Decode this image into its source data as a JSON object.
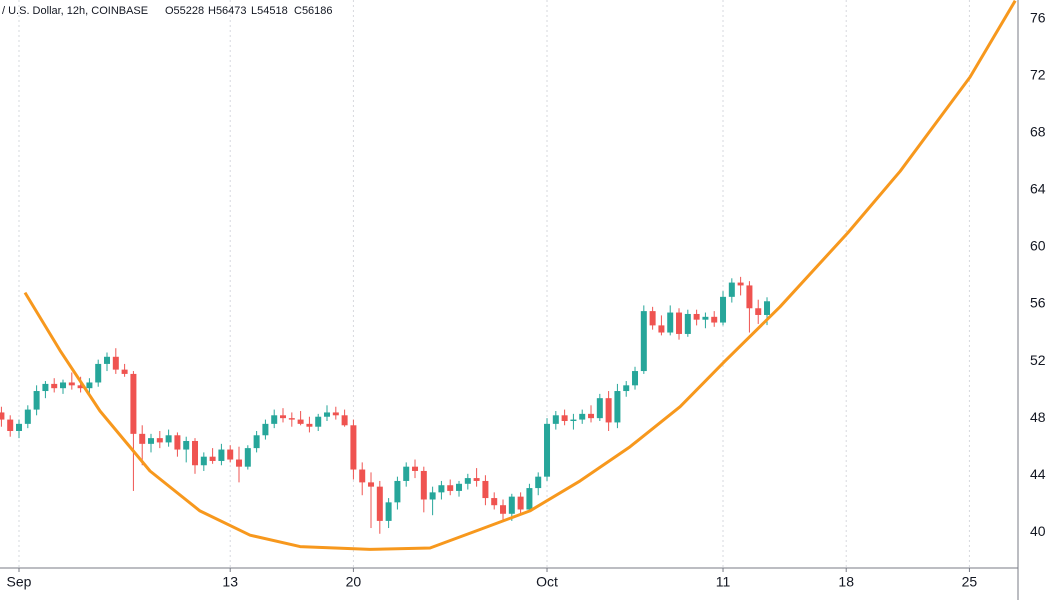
{
  "chart_data": {
    "type": "candlestick",
    "title": "/ U.S. Dollar, 12h, COINBASE",
    "ohlc_labels": [
      "O55228",
      "H56473",
      "L54518",
      "C56186"
    ],
    "up_color": "#26a69a",
    "down_color": "#ef5350",
    "grid": true,
    "xlim": [
      -1.08,
      56.76
    ],
    "ylim": [
      37.5,
      77.3
    ],
    "xticks": [
      {
        "value": 0,
        "label": "Sep"
      },
      {
        "value": 12,
        "label": "13"
      },
      {
        "value": 19,
        "label": "20"
      },
      {
        "value": 30,
        "label": "Oct"
      },
      {
        "value": 40,
        "label": "11"
      },
      {
        "value": 47,
        "label": "18"
      },
      {
        "value": 54,
        "label": "25"
      }
    ],
    "yticks": [
      40,
      44,
      48,
      52,
      56,
      60,
      64,
      68,
      72,
      76
    ],
    "x": [
      -1,
      -0.5,
      0,
      0.5,
      1,
      1.5,
      2,
      2.5,
      3,
      3.5,
      4,
      4.5,
      5,
      5.5,
      6,
      6.5,
      7,
      7.5,
      8,
      8.5,
      9,
      9.5,
      10,
      10.5,
      11,
      11.5,
      12,
      12.5,
      13,
      13.5,
      14,
      14.5,
      15,
      15.5,
      16,
      16.5,
      17,
      17.5,
      18,
      18.5,
      19,
      19.5,
      20,
      20.5,
      21,
      21.5,
      22,
      22.5,
      23,
      23.5,
      24,
      24.5,
      25,
      25.5,
      26,
      26.5,
      27,
      27.5,
      28,
      28.5,
      29,
      29.5,
      30,
      30.5,
      31,
      31.5,
      32,
      32.5,
      33,
      33.5,
      34,
      34.5,
      35,
      35.5,
      36,
      36.5,
      37,
      37.5,
      38,
      38.5,
      39,
      39.5,
      40,
      40.5,
      41,
      41.5,
      42,
      42.5
    ],
    "open": [
      48.4,
      47.9,
      47.1,
      47.6,
      48.6,
      49.9,
      50.4,
      50.1,
      50.5,
      50.3,
      50.1,
      50.5,
      51.8,
      52.3,
      51.4,
      51.1,
      46.9,
      46.2,
      46.6,
      46.3,
      46.8,
      45.8,
      46.4,
      44.7,
      45.3,
      45.0,
      45.8,
      45.1,
      44.6,
      45.9,
      46.8,
      47.6,
      48.2,
      48.0,
      47.9,
      47.6,
      47.4,
      48.1,
      48.4,
      48.2,
      47.5,
      44.4,
      43.5,
      43.2,
      40.8,
      42.1,
      43.6,
      44.6,
      44.3,
      42.3,
      42.8,
      43.3,
      42.9,
      43.4,
      43.8,
      43.6,
      42.4,
      41.9,
      41.3,
      42.5,
      41.6,
      43.1,
      43.9,
      47.6,
      48.2,
      47.8,
      47.9,
      48.3,
      48.0,
      49.4,
      47.7,
      49.9,
      50.3,
      51.3,
      55.5,
      54.5,
      54.0,
      55.4,
      53.9,
      55.3,
      54.9,
      55.1,
      54.7,
      56.5,
      57.5,
      57.3,
      55.7,
      55.23
    ],
    "high": [
      48.8,
      48.2,
      47.9,
      48.9,
      50.3,
      50.6,
      50.8,
      50.7,
      51.2,
      50.9,
      50.8,
      52.1,
      52.6,
      52.9,
      51.8,
      51.3,
      47.5,
      46.9,
      47.1,
      47.2,
      47.0,
      46.7,
      46.6,
      45.6,
      45.9,
      46.2,
      46.1,
      46.0,
      46.1,
      47.1,
      47.9,
      48.6,
      48.7,
      48.4,
      48.5,
      48.1,
      48.3,
      48.9,
      48.8,
      48.6,
      47.9,
      44.9,
      44.2,
      43.6,
      42.4,
      43.9,
      44.9,
      45.1,
      44.6,
      43.2,
      43.6,
      43.7,
      43.6,
      44.1,
      44.5,
      44.0,
      42.8,
      42.3,
      42.7,
      42.8,
      43.4,
      44.2,
      48.0,
      48.5,
      48.6,
      48.3,
      48.6,
      48.9,
      49.7,
      49.9,
      50.4,
      50.6,
      51.6,
      55.9,
      55.8,
      55.2,
      55.9,
      55.7,
      55.6,
      55.6,
      55.4,
      55.5,
      56.9,
      57.8,
      57.9,
      57.6,
      56.3,
      56.47
    ],
    "low": [
      47.4,
      46.7,
      46.6,
      47.3,
      48.2,
      49.4,
      49.8,
      49.7,
      50.0,
      49.8,
      49.6,
      50.2,
      51.3,
      51.1,
      50.9,
      42.9,
      44.7,
      45.6,
      45.9,
      46.0,
      45.3,
      44.9,
      44.1,
      44.3,
      44.8,
      44.7,
      44.9,
      43.5,
      44.4,
      45.6,
      46.5,
      47.3,
      47.7,
      47.4,
      47.5,
      47.0,
      47.1,
      47.8,
      47.9,
      47.4,
      43.7,
      42.6,
      40.3,
      39.9,
      40.3,
      41.6,
      43.2,
      43.8,
      41.4,
      41.2,
      42.3,
      42.6,
      42.5,
      43.0,
      43.2,
      41.9,
      41.6,
      40.9,
      40.8,
      41.2,
      41.4,
      42.6,
      43.6,
      47.2,
      47.5,
      47.2,
      47.6,
      47.7,
      47.8,
      47.1,
      47.3,
      49.5,
      50.0,
      51.1,
      54.2,
      53.8,
      53.8,
      53.5,
      53.7,
      54.5,
      54.3,
      54.4,
      54.5,
      56.1,
      56.6,
      54.0,
      54.6,
      54.52
    ],
    "close": [
      47.9,
      47.1,
      47.6,
      48.6,
      49.9,
      50.4,
      50.1,
      50.5,
      50.3,
      50.1,
      50.5,
      51.8,
      52.3,
      51.4,
      51.1,
      46.9,
      46.2,
      46.6,
      46.3,
      46.8,
      45.8,
      46.4,
      44.7,
      45.3,
      45.0,
      45.8,
      45.1,
      44.6,
      45.9,
      46.8,
      47.6,
      48.2,
      48.0,
      47.9,
      47.6,
      47.4,
      48.1,
      48.4,
      48.2,
      47.5,
      44.4,
      43.5,
      43.2,
      40.8,
      42.1,
      43.6,
      44.6,
      44.3,
      42.3,
      42.8,
      43.3,
      42.9,
      43.4,
      43.8,
      43.6,
      42.4,
      41.9,
      41.3,
      42.5,
      41.6,
      43.1,
      43.9,
      47.6,
      48.2,
      47.8,
      47.9,
      48.3,
      48.0,
      49.4,
      47.7,
      49.9,
      50.3,
      51.3,
      55.5,
      54.5,
      54.0,
      55.4,
      53.9,
      55.3,
      54.9,
      55.1,
      54.7,
      56.5,
      57.5,
      57.3,
      55.7,
      55.23,
      56.19
    ],
    "line": {
      "color": "#f7981d",
      "x": [
        0.34,
        2.33,
        4.6,
        7.44,
        10.28,
        13.13,
        15.97,
        19.94,
        23.35,
        26.19,
        29.03,
        31.88,
        34.72,
        37.56,
        40.11,
        43.24,
        47.1,
        50.06,
        54.03,
        56.6
      ],
      "values": [
        56.8,
        52.75,
        48.5,
        44.3,
        41.5,
        39.8,
        39.0,
        38.8,
        38.9,
        40.2,
        41.5,
        43.6,
        46.0,
        48.8,
        52.0,
        55.8,
        61.0,
        65.3,
        71.9,
        77.25
      ]
    }
  }
}
